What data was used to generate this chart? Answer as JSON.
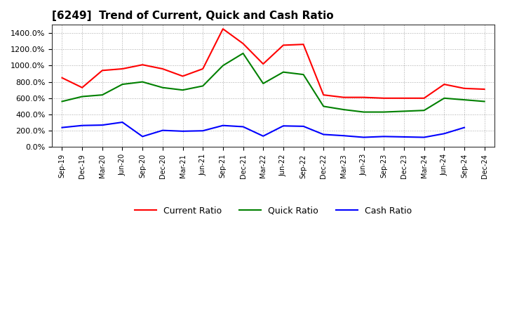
{
  "title": "[6249]  Trend of Current, Quick and Cash Ratio",
  "x_labels": [
    "Sep-19",
    "Dec-19",
    "Mar-20",
    "Jun-20",
    "Sep-20",
    "Dec-20",
    "Mar-21",
    "Jun-21",
    "Sep-21",
    "Dec-21",
    "Mar-22",
    "Jun-22",
    "Sep-22",
    "Dec-22",
    "Mar-23",
    "Jun-23",
    "Sep-23",
    "Dec-23",
    "Mar-24",
    "Jun-24",
    "Sep-24",
    "Dec-24"
  ],
  "current_ratio": [
    8.5,
    7.3,
    9.4,
    9.6,
    10.1,
    9.6,
    8.7,
    9.6,
    14.5,
    12.7,
    10.2,
    12.5,
    12.6,
    6.4,
    6.1,
    6.1,
    6.0,
    6.0,
    6.0,
    7.7,
    7.2,
    7.1
  ],
  "quick_ratio": [
    5.6,
    6.2,
    6.4,
    7.7,
    8.0,
    7.3,
    7.0,
    7.5,
    10.0,
    11.5,
    7.8,
    9.2,
    8.9,
    5.0,
    4.6,
    4.3,
    4.3,
    4.4,
    4.5,
    6.0,
    5.8,
    5.6
  ],
  "cash_ratio": [
    2.4,
    2.65,
    2.7,
    3.05,
    1.3,
    2.05,
    1.95,
    2.0,
    2.65,
    2.5,
    1.35,
    2.6,
    2.55,
    1.55,
    1.4,
    1.2,
    1.3,
    1.25,
    1.2,
    1.65,
    2.4,
    null
  ],
  "current_color": "#FF0000",
  "quick_color": "#008000",
  "cash_color": "#0000FF",
  "background_color": "#FFFFFF",
  "ylim": [
    0,
    15
  ],
  "ytick_values": [
    0,
    2,
    4,
    6,
    8,
    10,
    12,
    14
  ],
  "ytick_labels": [
    "0.0%",
    "200.0%",
    "400.0%",
    "600.0%",
    "800.0%",
    "1000.0%",
    "1200.0%",
    "1400.0%"
  ],
  "title_fontsize": 11,
  "legend_labels": [
    "Current Ratio",
    "Quick Ratio",
    "Cash Ratio"
  ],
  "line_width": 1.5
}
